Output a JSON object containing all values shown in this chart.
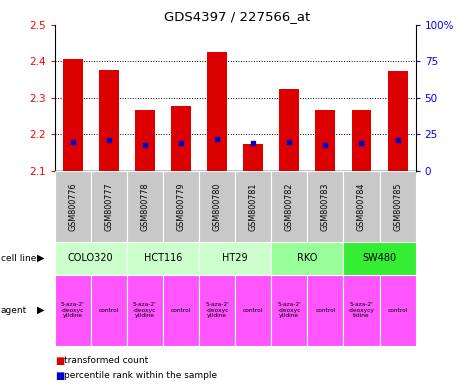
{
  "title": "GDS4397 / 227566_at",
  "samples": [
    "GSM800776",
    "GSM800777",
    "GSM800778",
    "GSM800779",
    "GSM800780",
    "GSM800781",
    "GSM800782",
    "GSM800783",
    "GSM800784",
    "GSM800785"
  ],
  "transformed_count": [
    2.408,
    2.377,
    2.268,
    2.278,
    2.425,
    2.175,
    2.325,
    2.268,
    2.267,
    2.373
  ],
  "percentile_rank": [
    20,
    21,
    18,
    19,
    22,
    19,
    20,
    18,
    19,
    21
  ],
  "ylim": [
    2.1,
    2.5
  ],
  "yticks": [
    2.1,
    2.2,
    2.3,
    2.4,
    2.5
  ],
  "right_yticks": [
    0,
    25,
    50,
    75,
    100
  ],
  "right_ylim": [
    0,
    100
  ],
  "bar_color": "#dd0000",
  "dot_color": "#0000cc",
  "cell_lines": [
    {
      "name": "COLO320",
      "start": 0,
      "end": 2,
      "color": "#ccffcc"
    },
    {
      "name": "HCT116",
      "start": 2,
      "end": 4,
      "color": "#ccffcc"
    },
    {
      "name": "HT29",
      "start": 4,
      "end": 6,
      "color": "#ccffcc"
    },
    {
      "name": "RKO",
      "start": 6,
      "end": 8,
      "color": "#99ff99"
    },
    {
      "name": "SW480",
      "start": 8,
      "end": 10,
      "color": "#33ee33"
    }
  ],
  "agents": [
    {
      "name": "5-aza-2'\n-deoxyc\nytidine",
      "start": 0,
      "end": 1,
      "color": "#ff55ff"
    },
    {
      "name": "control",
      "start": 1,
      "end": 2,
      "color": "#ff55ff"
    },
    {
      "name": "5-aza-2'\n-deoxyc\nytidine",
      "start": 2,
      "end": 3,
      "color": "#ff55ff"
    },
    {
      "name": "control",
      "start": 3,
      "end": 4,
      "color": "#ff55ff"
    },
    {
      "name": "5-aza-2'\n-deoxyc\nytidine",
      "start": 4,
      "end": 5,
      "color": "#ff55ff"
    },
    {
      "name": "control",
      "start": 5,
      "end": 6,
      "color": "#ff55ff"
    },
    {
      "name": "5-aza-2'\n-deoxyc\nytidine",
      "start": 6,
      "end": 7,
      "color": "#ff55ff"
    },
    {
      "name": "control",
      "start": 7,
      "end": 8,
      "color": "#ff55ff"
    },
    {
      "name": "5-aza-2'\n-deoxycy\ntidine",
      "start": 8,
      "end": 9,
      "color": "#ff55ff"
    },
    {
      "name": "control",
      "start": 9,
      "end": 10,
      "color": "#ff55ff"
    }
  ],
  "legend_items": [
    {
      "label": "transformed count",
      "color": "#dd0000"
    },
    {
      "label": "percentile rank within the sample",
      "color": "#0000cc"
    }
  ],
  "gsm_bg_color": "#c8c8c8",
  "fig_width": 4.75,
  "fig_height": 3.84,
  "dpi": 100
}
